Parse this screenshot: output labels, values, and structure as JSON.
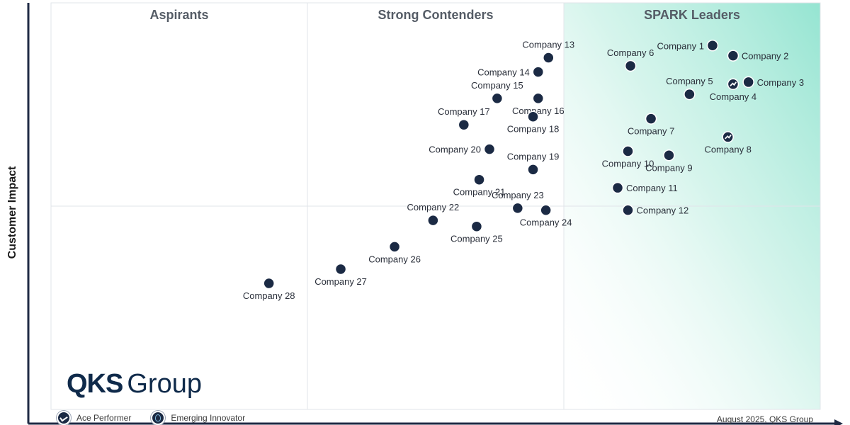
{
  "chart_data": {
    "type": "scatter",
    "title": "",
    "xlabel": "",
    "ylabel": "Customer Impact",
    "xlim": [
      0,
      3
    ],
    "ylim": [
      0,
      2
    ],
    "quadrants": [
      "Aspirants",
      "Strong Contenders",
      "SPARK Leaders"
    ],
    "points": [
      {
        "label": "Company 1",
        "x": 2.58,
        "y": 1.79,
        "marker": "dot"
      },
      {
        "label": "Company 2",
        "x": 2.66,
        "y": 1.74,
        "marker": "dot"
      },
      {
        "label": "Company 3",
        "x": 2.72,
        "y": 1.61,
        "marker": "dot"
      },
      {
        "label": "Company 4",
        "x": 2.66,
        "y": 1.6,
        "marker": "ace"
      },
      {
        "label": "Company 5",
        "x": 2.49,
        "y": 1.55,
        "marker": "dot"
      },
      {
        "label": "Company 6",
        "x": 2.26,
        "y": 1.69,
        "marker": "dot"
      },
      {
        "label": "Company 7",
        "x": 2.34,
        "y": 1.43,
        "marker": "dot"
      },
      {
        "label": "Company 8",
        "x": 2.64,
        "y": 1.34,
        "marker": "ace"
      },
      {
        "label": "Company 9",
        "x": 2.41,
        "y": 1.25,
        "marker": "dot"
      },
      {
        "label": "Company 10",
        "x": 2.25,
        "y": 1.27,
        "marker": "dot"
      },
      {
        "label": "Company 11",
        "x": 2.21,
        "y": 1.09,
        "marker": "dot"
      },
      {
        "label": "Company 12",
        "x": 2.25,
        "y": 0.98,
        "marker": "dot"
      },
      {
        "label": "Company 13",
        "x": 1.94,
        "y": 1.73,
        "marker": "dot"
      },
      {
        "label": "Company 14",
        "x": 1.9,
        "y": 1.66,
        "marker": "dot"
      },
      {
        "label": "Company 15",
        "x": 1.74,
        "y": 1.53,
        "marker": "dot"
      },
      {
        "label": "Company 16",
        "x": 1.9,
        "y": 1.53,
        "marker": "dot"
      },
      {
        "label": "Company 17",
        "x": 1.61,
        "y": 1.4,
        "marker": "dot"
      },
      {
        "label": "Company 18",
        "x": 1.88,
        "y": 1.44,
        "marker": "dot"
      },
      {
        "label": "Company 19",
        "x": 1.88,
        "y": 1.18,
        "marker": "dot"
      },
      {
        "label": "Company 20",
        "x": 1.71,
        "y": 1.28,
        "marker": "dot"
      },
      {
        "label": "Company 21",
        "x": 1.67,
        "y": 1.13,
        "marker": "dot"
      },
      {
        "label": "Company 22",
        "x": 1.49,
        "y": 0.93,
        "marker": "dot"
      },
      {
        "label": "Company 23",
        "x": 1.82,
        "y": 0.99,
        "marker": "dot"
      },
      {
        "label": "Company 24",
        "x": 1.93,
        "y": 0.98,
        "marker": "dot"
      },
      {
        "label": "Company 25",
        "x": 1.66,
        "y": 0.9,
        "marker": "dot"
      },
      {
        "label": "Company 26",
        "x": 1.34,
        "y": 0.8,
        "marker": "dot"
      },
      {
        "label": "Company 27",
        "x": 1.13,
        "y": 0.69,
        "marker": "dot"
      },
      {
        "label": "Company 28",
        "x": 0.85,
        "y": 0.62,
        "marker": "dot"
      }
    ],
    "legend": [
      {
        "name": "Ace Performer",
        "icon": "ace-performer-icon"
      },
      {
        "name": "Emerging Innovator",
        "icon": "emerging-innovator-icon"
      }
    ],
    "grid": true,
    "colors": {
      "marker": "#1b2a44",
      "leader_gradient": "#8fe3cf",
      "axis": "#1f2a44"
    }
  },
  "brand": {
    "logo_bold": "QKS",
    "logo_regular": "Group"
  },
  "legend_labels": {
    "ace": "Ace Performer",
    "innovator": "Emerging Innovator"
  },
  "footer": "August 2025, QKS Group"
}
